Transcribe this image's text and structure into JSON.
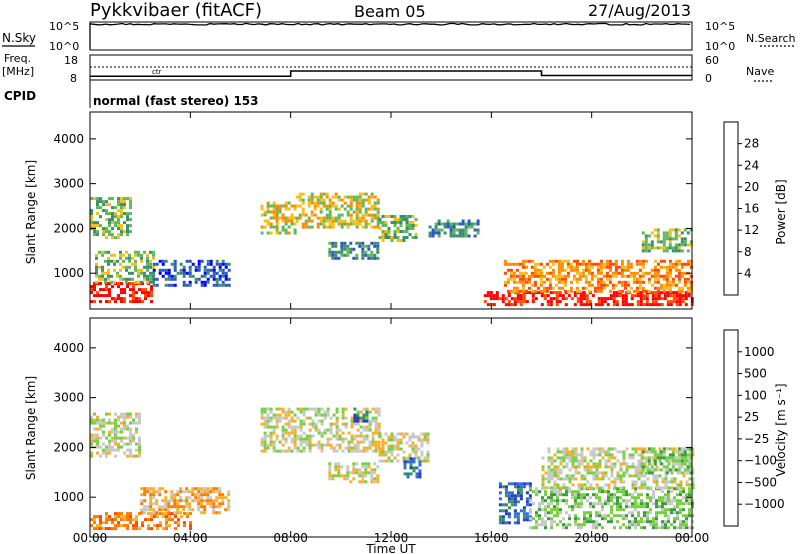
{
  "header": {
    "station": "Pykkvibaer (fitACF)",
    "beam": "Beam 05",
    "date": "27/Aug/2013"
  },
  "top_panels": {
    "nsky_label": "N.Sky",
    "nsearch_label": "N.Search",
    "nsky_ticks": [
      "10^5",
      "10^0"
    ],
    "nsearch_ticks": [
      "10^5",
      "10^0"
    ],
    "freq_label": "Freq.",
    "freq_unit": "[MHz]",
    "freq_ticks": [
      "18",
      "8"
    ],
    "nave_label": "Nave",
    "nave_ticks": [
      "60",
      "0"
    ],
    "cpid_label": "CPID",
    "cpid_text": "normal (fast stereo) 153",
    "ctr_mark": "ctr"
  },
  "chart_data": [
    {
      "type": "heatmap",
      "panel": "power",
      "ylabel": "Slant Range [km]",
      "xlabel": "",
      "y_ticks": [
        "1000",
        "2000",
        "3000",
        "4000"
      ],
      "ylim": [
        200,
        4600
      ],
      "colorbar_label": "Power [dB]",
      "colorbar_ticks": [
        "4",
        "8",
        "12",
        "16",
        "20",
        "24",
        "28"
      ],
      "colors": [
        "#0000ff",
        "#2a58c8",
        "#3b8f6e",
        "#5fb85a",
        "#f0c020",
        "#ff8c00",
        "#ff4a00",
        "#ff0000"
      ],
      "echo_regions": [
        {
          "t0": 0.0,
          "t1": 2.4,
          "r0": 350,
          "r1": 800,
          "level": 7
        },
        {
          "t0": 0.2,
          "t1": 2.5,
          "r0": 800,
          "r1": 1500,
          "level": 3
        },
        {
          "t0": 0.0,
          "t1": 1.6,
          "r0": 1800,
          "r1": 2700,
          "level": 3
        },
        {
          "t0": 2.5,
          "t1": 5.5,
          "r0": 700,
          "r1": 1300,
          "level": 1
        },
        {
          "t0": 6.8,
          "t1": 8.2,
          "r0": 1900,
          "r1": 2600,
          "level": 4
        },
        {
          "t0": 8.2,
          "t1": 11.5,
          "r0": 2000,
          "r1": 2800,
          "level": 4
        },
        {
          "t0": 9.5,
          "t1": 11.5,
          "r0": 1300,
          "r1": 1700,
          "level": 2
        },
        {
          "t0": 11.5,
          "t1": 13.0,
          "r0": 1700,
          "r1": 2300,
          "level": 3
        },
        {
          "t0": 13.5,
          "t1": 15.5,
          "r0": 1800,
          "r1": 2200,
          "level": 2
        },
        {
          "t0": 15.7,
          "t1": 24.0,
          "r0": 300,
          "r1": 600,
          "level": 7
        },
        {
          "t0": 16.5,
          "t1": 24.0,
          "r0": 600,
          "r1": 1300,
          "level": 5
        },
        {
          "t0": 22.0,
          "t1": 24.0,
          "r0": 1500,
          "r1": 2000,
          "level": 3
        }
      ]
    },
    {
      "type": "heatmap",
      "panel": "velocity",
      "ylabel": "Slant Range [km]",
      "xlabel": "Time UT",
      "x_ticks": [
        "00:00",
        "04:00",
        "08:00",
        "12:00",
        "16:00",
        "20:00",
        "00:00"
      ],
      "y_ticks": [
        "1000",
        "2000",
        "3000",
        "4000"
      ],
      "ylim": [
        200,
        4600
      ],
      "colorbar_label": "Velocity [m s⁻¹]",
      "colorbar_ticks": [
        "1000",
        "500",
        "100",
        "25",
        "−25",
        "−100",
        "−500",
        "−1000"
      ],
      "colors": [
        "#2b3cc0",
        "#2f6fd8",
        "#3a9a48",
        "#76d040",
        "#c8c8c8",
        "#f5b030",
        "#ff7a00",
        "#ff4a00",
        "#ff0000"
      ],
      "echo_regions": [
        {
          "t0": 0.0,
          "t1": 4.0,
          "r0": 350,
          "r1": 700,
          "level": 6
        },
        {
          "t0": 0.0,
          "t1": 2.0,
          "r0": 1800,
          "r1": 2700,
          "level": 4
        },
        {
          "t0": 2.0,
          "t1": 5.5,
          "r0": 700,
          "r1": 1200,
          "level": 5
        },
        {
          "t0": 6.8,
          "t1": 11.5,
          "r0": 1900,
          "r1": 2800,
          "level": 4
        },
        {
          "t0": 9.5,
          "t1": 11.5,
          "r0": 1300,
          "r1": 1700,
          "level": 4
        },
        {
          "t0": 10.5,
          "t1": 11.0,
          "r0": 2500,
          "r1": 2800,
          "level": 1
        },
        {
          "t0": 11.5,
          "t1": 13.5,
          "r0": 1700,
          "r1": 2300,
          "level": 4
        },
        {
          "t0": 12.5,
          "t1": 13.2,
          "r0": 1400,
          "r1": 1800,
          "level": 1
        },
        {
          "t0": 16.3,
          "t1": 17.5,
          "r0": 500,
          "r1": 1300,
          "level": 1
        },
        {
          "t0": 17.5,
          "t1": 24.0,
          "r0": 400,
          "r1": 1200,
          "level": 3
        },
        {
          "t0": 18.0,
          "t1": 24.0,
          "r0": 1200,
          "r1": 2000,
          "level": 4
        },
        {
          "t0": 22.0,
          "t1": 24.0,
          "r0": 1500,
          "r1": 2000,
          "level": 3
        }
      ]
    }
  ],
  "series_lines": {
    "nsky_level": 0.92,
    "freq_steps": [
      {
        "t0": 0.0,
        "t1": 8.0,
        "mhz": 10.3
      },
      {
        "t0": 8.0,
        "t1": 18.0,
        "mhz": 12.4
      },
      {
        "t0": 18.0,
        "t1": 24.0,
        "mhz": 10.6
      }
    ]
  }
}
